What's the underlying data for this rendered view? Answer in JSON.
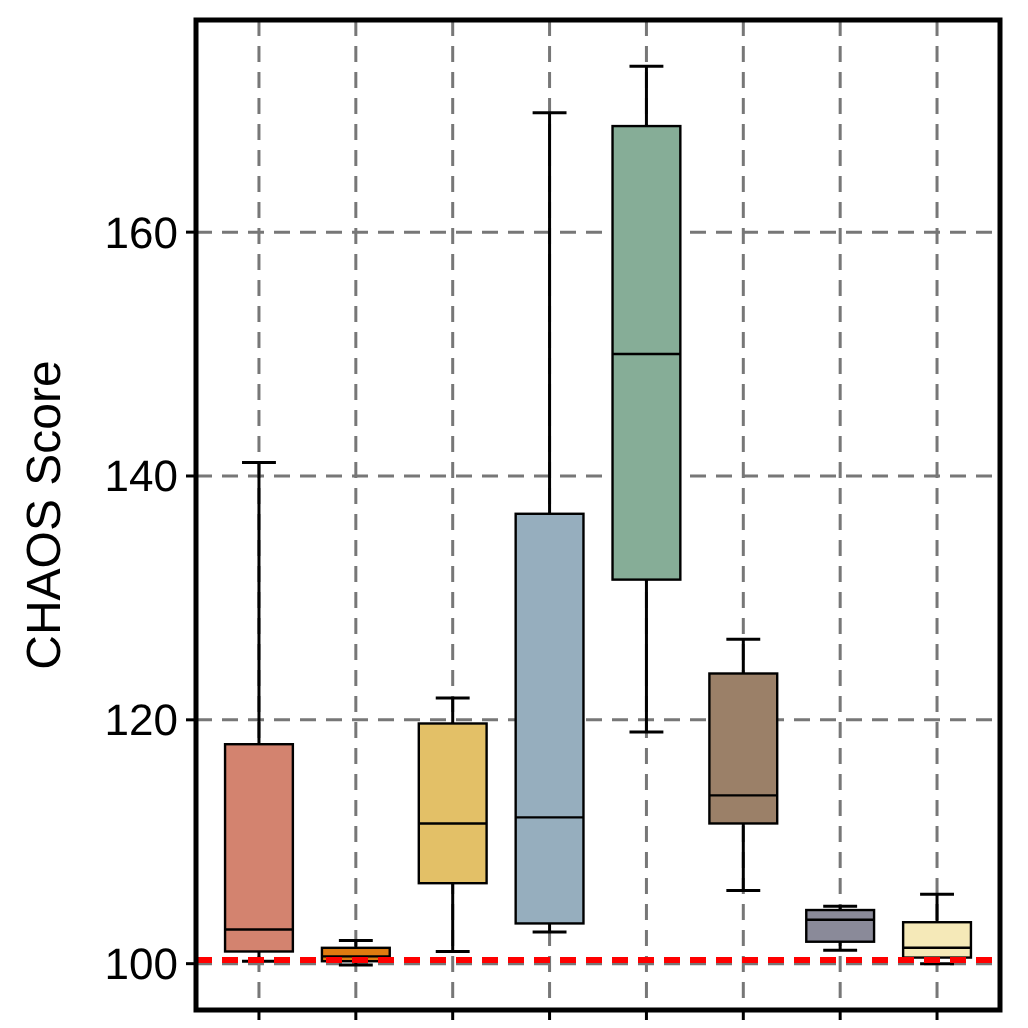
{
  "chart_data": {
    "type": "box",
    "ylabel": "CHAOS Score",
    "categories": [
      null,
      null,
      null,
      null,
      null,
      null,
      null,
      null
    ],
    "colors": [
      "#d3836f",
      "#e07b10",
      "#e3c067",
      "#96aebe",
      "#86ad97",
      "#9b8068",
      "#8a8a99",
      "#f5e9b8"
    ],
    "boxes": [
      {
        "low": 100.2,
        "q1": 101,
        "median": 102.8,
        "q3": 118,
        "high": 141.1
      },
      {
        "low": 99.9,
        "q1": 100.2,
        "median": 100.6,
        "q3": 101.3,
        "high": 101.9
      },
      {
        "low": 101,
        "q1": 106.6,
        "median": 111.5,
        "q3": 119.7,
        "high": 121.8
      },
      {
        "low": 102.6,
        "q1": 103.3,
        "median": 112,
        "q3": 136.9,
        "high": 169.8
      },
      {
        "low": 119,
        "q1": 131.5,
        "median": 150,
        "q3": 168.7,
        "high": 173.6
      },
      {
        "low": 106,
        "q1": 111.5,
        "median": 113.8,
        "q3": 123.8,
        "high": 126.6
      },
      {
        "low": 101.1,
        "q1": 101.8,
        "median": 103.6,
        "q3": 104.4,
        "high": 104.7
      },
      {
        "low": 100,
        "q1": 100.5,
        "median": 101.3,
        "q3": 103.4,
        "high": 105.7
      }
    ],
    "ylim": [
      96.2,
      177.4
    ],
    "yticks": [
      100,
      120,
      140,
      160
    ],
    "grid": true,
    "tick_labels": "y",
    "ref_lines": [
      {
        "axis": "y",
        "value": 100.3,
        "color": "#ff0000",
        "line_style": "dashed"
      }
    ]
  }
}
